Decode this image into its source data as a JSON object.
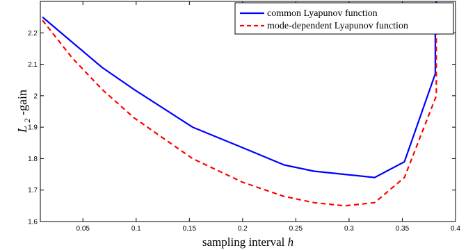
{
  "chart_data": {
    "type": "line",
    "title": "",
    "xlabel": "sampling interval",
    "xlabel_var": "h",
    "ylabel_script": "L",
    "ylabel_sub": "2",
    "ylabel_rest": "-gain",
    "xlim": [
      0.01,
      0.4
    ],
    "ylim": [
      1.6,
      2.3
    ],
    "xticks": [
      0.05,
      0.1,
      0.15,
      0.2,
      0.25,
      0.3,
      0.35,
      0.4
    ],
    "yticks": [
      1.6,
      1.7,
      1.8,
      1.9,
      2.0,
      2.1,
      2.2
    ],
    "xtick_labels": [
      "0.05",
      "0.1",
      "0.15",
      "0.2",
      "0.25",
      "0.3",
      "0.35",
      "0.4"
    ],
    "ytick_labels": [
      "1.6",
      "1.7",
      "1.8",
      "1.9",
      "2",
      "2.1",
      "2.2"
    ],
    "grid": false,
    "legend_position": "top-right",
    "series": [
      {
        "name": "common Lyapunov function",
        "color": "#0000ff",
        "style": "solid",
        "x": [
          0.012,
          0.04,
          0.068,
          0.098,
          0.153,
          0.2,
          0.239,
          0.267,
          0.296,
          0.324,
          0.352,
          0.381,
          0.381,
          0.382
        ],
        "y": [
          2.25,
          2.17,
          2.09,
          2.02,
          1.9,
          1.835,
          1.78,
          1.76,
          1.75,
          1.74,
          1.79,
          2.07,
          2.2,
          2.3
        ]
      },
      {
        "name": "mode-dependent Lyapunov function",
        "color": "#ff0000",
        "style": "dashed",
        "x": [
          0.012,
          0.04,
          0.068,
          0.098,
          0.153,
          0.2,
          0.239,
          0.267,
          0.296,
          0.324,
          0.352,
          0.382,
          0.382
        ],
        "y": [
          2.24,
          2.12,
          2.02,
          1.93,
          1.8,
          1.725,
          1.68,
          1.66,
          1.65,
          1.66,
          1.74,
          2.0,
          2.3
        ]
      }
    ]
  }
}
